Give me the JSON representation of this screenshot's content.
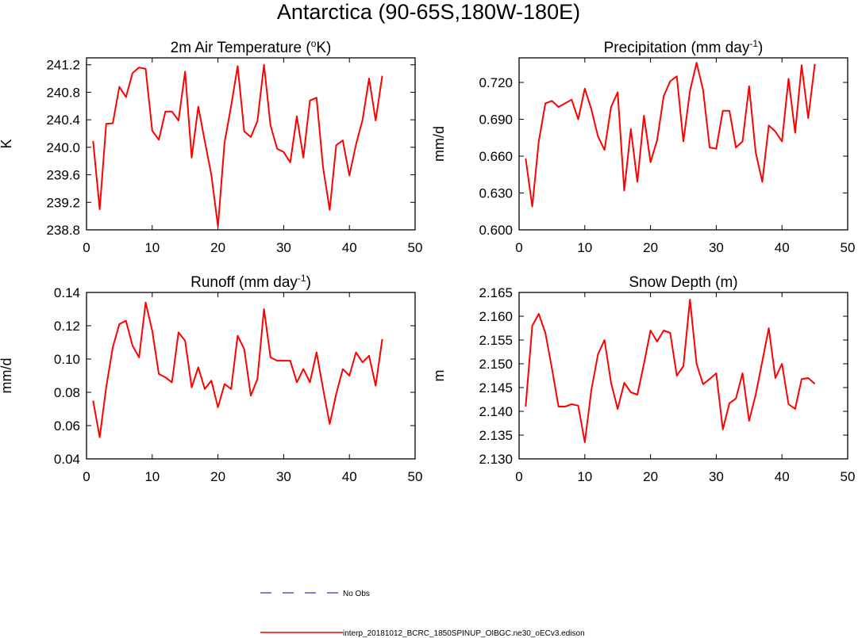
{
  "figure": {
    "title": "Antarctica (90-65S,180W-180E)"
  },
  "chart_data": [
    {
      "type": "line",
      "title": "2m Air Temperature (",
      "title_sup": "o",
      "title_end": "K)",
      "xlabel": "",
      "ylabel": "K",
      "xlim": [
        0,
        50
      ],
      "ylim": [
        238.8,
        241.3
      ],
      "x_ticks": [
        0,
        10,
        20,
        30,
        40,
        50
      ],
      "x_tick_labels": [
        "0",
        "10",
        "20",
        "30",
        "40",
        "50"
      ],
      "y_ticks": [
        238.8,
        239.2,
        239.6,
        240.0,
        240.4,
        240.8,
        241.2
      ],
      "y_tick_labels": [
        "238.8",
        "239.2",
        "239.6",
        "240.0",
        "240.4",
        "240.8",
        "241.2"
      ],
      "grid": false,
      "series": [
        {
          "color": "#ff0000",
          "x": [
            1,
            2,
            3,
            4,
            5,
            6,
            7,
            8,
            9,
            10,
            11,
            12,
            13,
            14,
            15,
            16,
            17,
            18,
            19,
            20,
            21,
            22,
            23,
            24,
            25,
            26,
            27,
            28,
            29,
            30,
            31,
            32,
            33,
            34,
            35,
            36,
            37,
            38,
            39,
            40,
            41,
            42,
            43,
            44,
            45
          ],
          "values": [
            240.09,
            239.1,
            240.34,
            240.35,
            240.88,
            240.73,
            241.08,
            241.16,
            241.14,
            240.24,
            240.11,
            240.52,
            240.52,
            240.39,
            241.1,
            239.85,
            240.59,
            240.09,
            239.6,
            238.85,
            240.07,
            240.6,
            241.18,
            240.23,
            240.15,
            240.38,
            241.2,
            240.32,
            239.98,
            239.93,
            239.78,
            240.45,
            239.85,
            240.68,
            240.72,
            239.7,
            239.09,
            240.03,
            240.1,
            239.59,
            240.04,
            240.4,
            241.0,
            240.39,
            241.04
          ]
        }
      ]
    },
    {
      "type": "line",
      "title": "Precipitation (mm day",
      "title_sup": "-1",
      "title_end": ")",
      "xlabel": "",
      "ylabel": "mm/d",
      "xlim": [
        0,
        50
      ],
      "ylim": [
        0.6,
        0.74
      ],
      "x_ticks": [
        0,
        10,
        20,
        30,
        40,
        50
      ],
      "x_tick_labels": [
        "0",
        "10",
        "20",
        "30",
        "40",
        "50"
      ],
      "y_ticks": [
        0.6,
        0.63,
        0.66,
        0.69,
        0.72
      ],
      "y_tick_labels": [
        "0.600",
        "0.630",
        "0.660",
        "0.690",
        "0.720"
      ],
      "grid": false,
      "series": [
        {
          "color": "#ff0000",
          "x": [
            1,
            2,
            3,
            4,
            5,
            6,
            7,
            8,
            9,
            10,
            11,
            12,
            13,
            14,
            15,
            16,
            17,
            18,
            19,
            20,
            21,
            22,
            23,
            24,
            25,
            26,
            27,
            28,
            29,
            30,
            31,
            32,
            33,
            34,
            35,
            36,
            37,
            38,
            39,
            40,
            41,
            42,
            43,
            44,
            45
          ],
          "values": [
            0.658,
            0.619,
            0.672,
            0.703,
            0.705,
            0.7,
            0.703,
            0.706,
            0.69,
            0.715,
            0.698,
            0.676,
            0.665,
            0.7,
            0.712,
            0.632,
            0.682,
            0.639,
            0.693,
            0.655,
            0.673,
            0.709,
            0.721,
            0.725,
            0.672,
            0.713,
            0.736,
            0.714,
            0.667,
            0.666,
            0.697,
            0.697,
            0.667,
            0.672,
            0.717,
            0.663,
            0.639,
            0.685,
            0.68,
            0.672,
            0.723,
            0.679,
            0.734,
            0.691,
            0.735
          ]
        }
      ]
    },
    {
      "type": "line",
      "title": "Runoff (mm day",
      "title_sup": "-1",
      "title_end": ")",
      "xlabel": "",
      "ylabel": "mm/d",
      "xlim": [
        0,
        50
      ],
      "ylim": [
        0.04,
        0.14
      ],
      "x_ticks": [
        0,
        10,
        20,
        30,
        40,
        50
      ],
      "x_tick_labels": [
        "0",
        "10",
        "20",
        "30",
        "40",
        "50"
      ],
      "y_ticks": [
        0.04,
        0.06,
        0.08,
        0.1,
        0.12,
        0.14
      ],
      "y_tick_labels": [
        "0.04",
        "0.06",
        "0.08",
        "0.10",
        "0.12",
        "0.14"
      ],
      "grid": false,
      "series": [
        {
          "color": "#ff0000",
          "x": [
            1,
            2,
            3,
            4,
            5,
            6,
            7,
            8,
            9,
            10,
            11,
            12,
            13,
            14,
            15,
            16,
            17,
            18,
            19,
            20,
            21,
            22,
            23,
            24,
            25,
            26,
            27,
            28,
            29,
            30,
            31,
            32,
            33,
            34,
            35,
            36,
            37,
            38,
            39,
            40,
            41,
            42,
            43,
            44,
            45
          ],
          "values": [
            0.075,
            0.053,
            0.083,
            0.107,
            0.121,
            0.123,
            0.108,
            0.101,
            0.134,
            0.117,
            0.091,
            0.089,
            0.086,
            0.116,
            0.111,
            0.083,
            0.095,
            0.082,
            0.087,
            0.071,
            0.085,
            0.082,
            0.114,
            0.106,
            0.078,
            0.088,
            0.13,
            0.101,
            0.099,
            0.099,
            0.099,
            0.086,
            0.094,
            0.086,
            0.104,
            0.082,
            0.061,
            0.079,
            0.094,
            0.09,
            0.104,
            0.098,
            0.102,
            0.084,
            0.112
          ]
        }
      ]
    },
    {
      "type": "line",
      "title": "Snow Depth (m)",
      "title_sup": "",
      "title_end": "",
      "xlabel": "",
      "ylabel": "m",
      "xlim": [
        0,
        50
      ],
      "ylim": [
        2.13,
        2.165
      ],
      "x_ticks": [
        0,
        10,
        20,
        30,
        40,
        50
      ],
      "x_tick_labels": [
        "0",
        "10",
        "20",
        "30",
        "40",
        "50"
      ],
      "y_ticks": [
        2.13,
        2.135,
        2.14,
        2.145,
        2.15,
        2.155,
        2.16,
        2.165
      ],
      "y_tick_labels": [
        "2.130",
        "2.135",
        "2.140",
        "2.145",
        "2.150",
        "2.155",
        "2.160",
        "2.165"
      ],
      "grid": false,
      "series": [
        {
          "color": "#ff0000",
          "x": [
            1,
            2,
            3,
            4,
            5,
            6,
            7,
            8,
            9,
            10,
            11,
            12,
            13,
            14,
            15,
            16,
            17,
            18,
            19,
            20,
            21,
            22,
            23,
            24,
            25,
            26,
            27,
            28,
            29,
            30,
            31,
            32,
            33,
            34,
            35,
            36,
            37,
            38,
            39,
            40,
            41,
            42,
            43,
            44,
            45
          ],
          "values": [
            2.141,
            2.158,
            2.1605,
            2.1565,
            2.149,
            2.141,
            2.141,
            2.1415,
            2.1412,
            2.1335,
            2.1445,
            2.152,
            2.155,
            2.146,
            2.1405,
            2.146,
            2.144,
            2.1435,
            2.15,
            2.157,
            2.1547,
            2.157,
            2.1565,
            2.1475,
            2.1495,
            2.1635,
            2.15,
            2.1457,
            2.1468,
            2.148,
            2.1362,
            2.1417,
            2.1427,
            2.148,
            2.138,
            2.1435,
            2.1505,
            2.1575,
            2.147,
            2.15,
            2.1415,
            2.1405,
            2.1468,
            2.147,
            2.1458
          ]
        }
      ]
    }
  ],
  "legend": {
    "items": [
      {
        "label": "No Obs",
        "color": "#3333cc",
        "style": "dashed"
      },
      {
        "label": "interp_20181012_BCRC_1850SPINUP_OIBGC.ne30_oECv3.edison",
        "color": "#ff0000",
        "style": "solid"
      }
    ]
  }
}
